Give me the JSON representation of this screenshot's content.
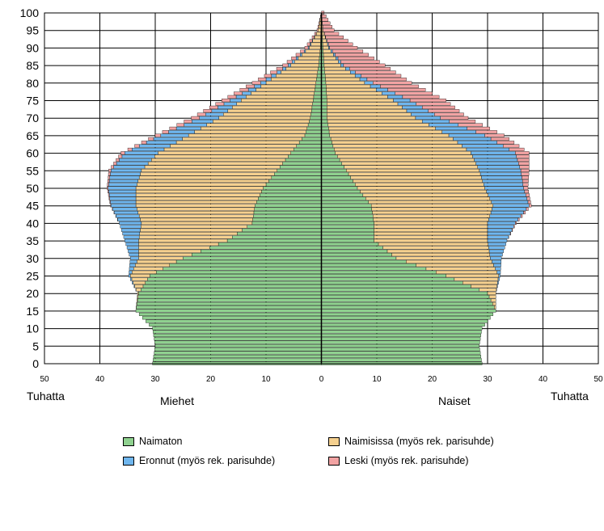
{
  "chart_data": {
    "type": "bar",
    "orientation": "horizontal-pyramid",
    "y_ticks": [
      "0",
      "5",
      "10",
      "15",
      "20",
      "25",
      "30",
      "35",
      "40",
      "45",
      "50",
      "55",
      "60",
      "65",
      "70",
      "75",
      "80",
      "85",
      "90",
      "95",
      "100"
    ],
    "x_ticks": [
      "50",
      "40",
      "30",
      "20",
      "10",
      "0",
      "10",
      "20",
      "30",
      "40",
      "50"
    ],
    "x_unit_left": "Tuhatta",
    "x_unit_right": "Tuhatta",
    "left_label": "Miehet",
    "right_label": "Naiset",
    "ylim": [
      0,
      100
    ],
    "xlim": [
      -50,
      50
    ],
    "grid": true,
    "legend_position": "bottom",
    "series": [
      {
        "name": "Naimaton",
        "color": "#8fd18f"
      },
      {
        "name": "Naimisissa (myös rek. parisuhde)",
        "color": "#f5d08f"
      },
      {
        "name": "Eronnut (myös rek. parisuhde)",
        "color": "#6fb6ee"
      },
      {
        "name": "Leski (myös rek. parisuhde)",
        "color": "#f2a3a3"
      }
    ],
    "age_groups": [
      0,
      5,
      10,
      15,
      20,
      25,
      30,
      35,
      40,
      45,
      50,
      55,
      60,
      65,
      70,
      75,
      80,
      85,
      90,
      95,
      100
    ],
    "men": {
      "Naimaton": [
        30.5,
        30.0,
        30.5,
        33.5,
        33.0,
        31.0,
        25.0,
        17.0,
        12.5,
        12.0,
        10.5,
        8.0,
        5.5,
        3.0,
        2.0,
        1.5,
        1.0,
        0.5,
        0.2,
        0.1,
        0.0
      ],
      "Naimisissa": [
        0.0,
        0.0,
        0.0,
        0.0,
        0.2,
        3.5,
        8.0,
        16.0,
        20.0,
        21.5,
        23.0,
        24.5,
        24.0,
        21.0,
        16.5,
        13.0,
        9.0,
        5.0,
        2.0,
        0.5,
        0.0
      ],
      "Eronnut": [
        0.0,
        0.0,
        0.0,
        0.0,
        0.0,
        0.3,
        1.5,
        2.5,
        4.0,
        4.5,
        5.0,
        5.5,
        6.0,
        5.0,
        3.5,
        2.0,
        1.0,
        0.5,
        0.2,
        0.0,
        0.0
      ],
      "Leski": [
        0.0,
        0.0,
        0.0,
        0.0,
        0.0,
        0.0,
        0.0,
        0.0,
        0.0,
        0.1,
        0.2,
        0.4,
        0.7,
        1.0,
        1.5,
        1.5,
        1.5,
        1.0,
        0.6,
        0.2,
        0.0
      ]
    },
    "women": {
      "Naimaton": [
        29.0,
        28.5,
        29.0,
        31.5,
        30.0,
        22.5,
        13.5,
        9.5,
        9.5,
        9.0,
        6.5,
        4.5,
        2.5,
        1.5,
        1.0,
        1.0,
        0.8,
        0.5,
        0.3,
        0.1,
        0.0
      ],
      "Naimisissa": [
        0.0,
        0.0,
        0.0,
        0.0,
        1.5,
        9.5,
        17.0,
        20.5,
        20.5,
        22.0,
        23.0,
        24.0,
        24.5,
        21.5,
        16.0,
        12.0,
        7.0,
        3.0,
        1.0,
        0.2,
        0.0
      ],
      "Eronnut": [
        0.0,
        0.0,
        0.0,
        0.0,
        0.0,
        0.3,
        2.0,
        3.5,
        5.0,
        6.5,
        7.0,
        7.5,
        8.0,
        6.5,
        4.5,
        3.0,
        1.5,
        0.5,
        0.2,
        0.0,
        0.0
      ],
      "Leski": [
        0.0,
        0.0,
        0.0,
        0.0,
        0.0,
        0.0,
        0.0,
        0.0,
        0.2,
        0.4,
        0.8,
        1.5,
        2.5,
        3.5,
        5.0,
        6.5,
        7.0,
        7.5,
        5.0,
        2.0,
        0.5
      ]
    }
  }
}
